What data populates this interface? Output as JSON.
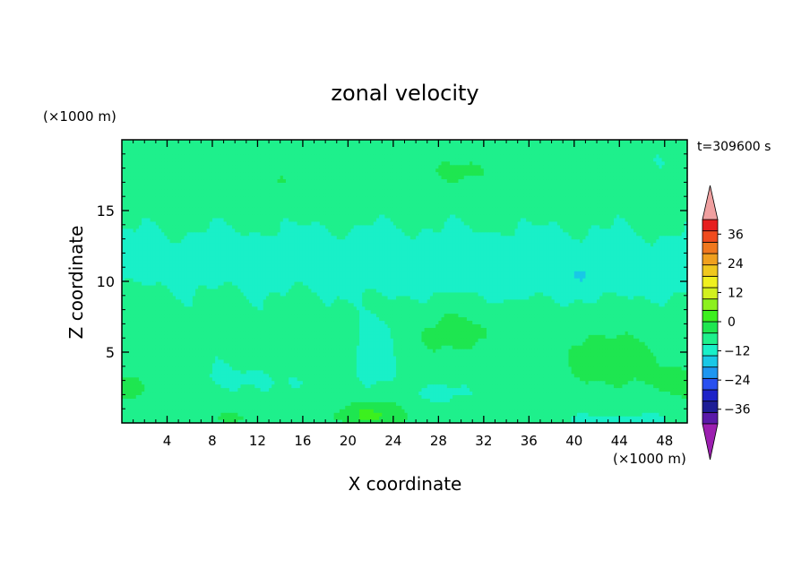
{
  "chart_data": {
    "type": "heatmap",
    "title": "zonal velocity",
    "xlabel": "X coordinate",
    "ylabel": "Z coordinate",
    "x_unit": "(×1000 m)",
    "y_unit": "(×1000 m)",
    "time_label": "t=309600 s",
    "xlim": [
      0,
      50
    ],
    "ylim": [
      0,
      20
    ],
    "x_ticks": [
      4,
      8,
      12,
      16,
      20,
      24,
      28,
      32,
      36,
      40,
      44,
      48
    ],
    "y_ticks": [
      5,
      10,
      15
    ],
    "colorbar": {
      "min": -42,
      "max": 42,
      "step": 6,
      "tick_labels": [
        36,
        24,
        12,
        0,
        -12,
        -24,
        -36
      ],
      "extend": "both",
      "colors": [
        "#9c1fb0",
        "#5a1aa8",
        "#1e1e96",
        "#1e23c8",
        "#2850f0",
        "#1e96f0",
        "#19c8e6",
        "#19f0c8",
        "#1ef08c",
        "#1ee650",
        "#3cf01e",
        "#8cf01e",
        "#d2f01e",
        "#f0f01e",
        "#f0c81e",
        "#f0a01e",
        "#f0781e",
        "#f04b1e",
        "#e61e1e",
        "#f0a0a0"
      ]
    },
    "field_summary": "contoured zonal velocity u(x,z) in m/s; mostly -6..+6, positive jets near surface at x≈20-24 and x≈40-48, negative band z≈9-14"
  }
}
